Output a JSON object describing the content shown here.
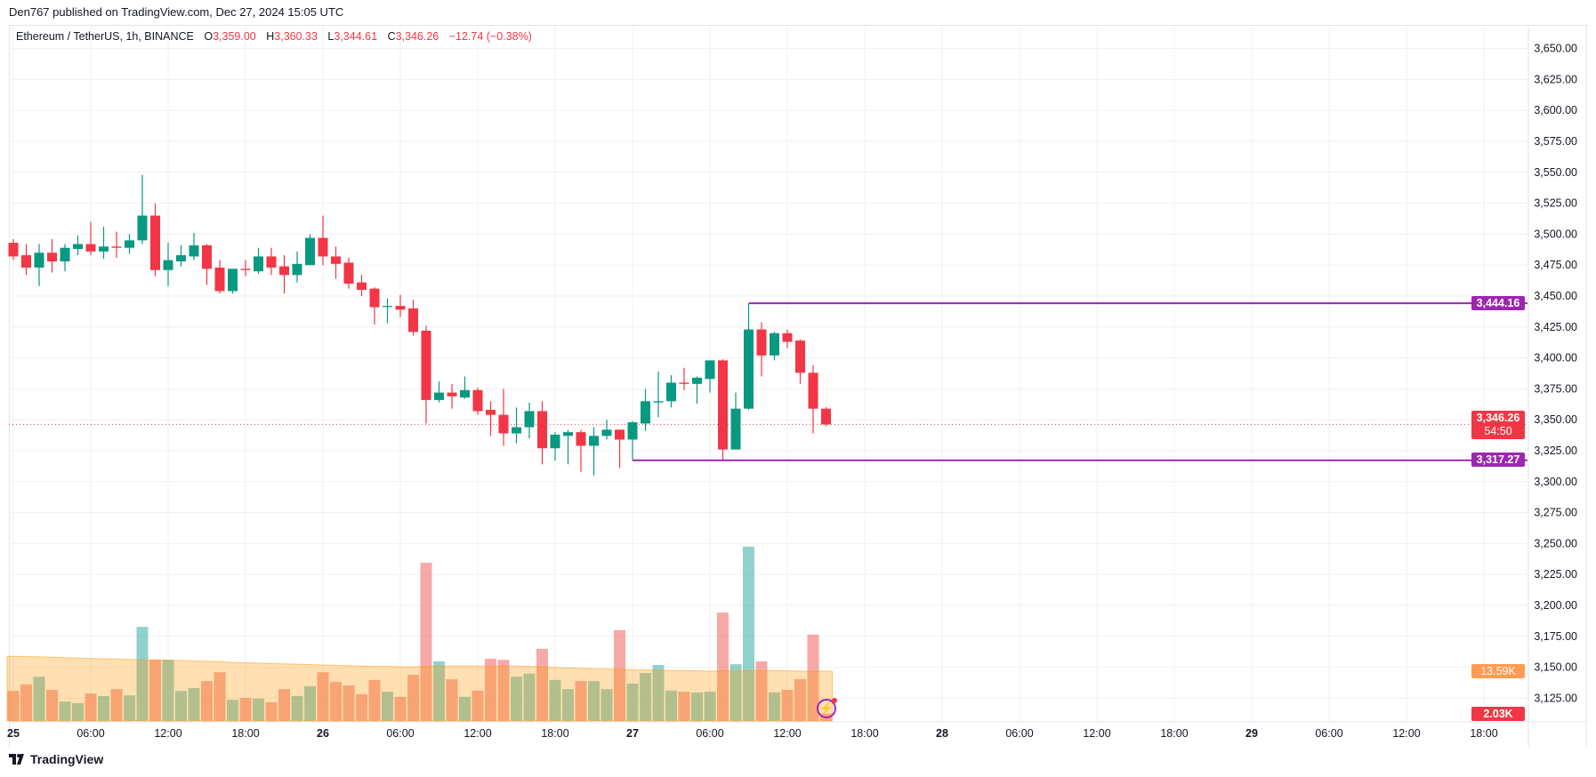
{
  "header": {
    "published": "Den767 published on TradingView.com, Dec 27, 2024 15:05 UTC"
  },
  "legend": {
    "symbol": "Ethereum / TetherUS, 1h, BINANCE",
    "o_label": "O",
    "o": "3,359.00",
    "h_label": "H",
    "h": "3,360.33",
    "l_label": "L",
    "l": "3,344.61",
    "c_label": "C",
    "c": "3,346.26",
    "change": "−12.74 (−0.38%)"
  },
  "price_boxes": {
    "resistance": "3,444.16",
    "current": "3,346.26",
    "countdown": "54:50",
    "support": "3,317.27"
  },
  "volume_boxes": {
    "ma": "13.59K",
    "last": "2.03K"
  },
  "footer": {
    "brand": "TradingView"
  },
  "colors": {
    "up": "#089981",
    "down": "#f23645",
    "level": "#9c27b0",
    "ma": "#ff9800"
  },
  "chart_data": {
    "type": "candlestick",
    "title": "Ethereum / TetherUS, 1h, BINANCE",
    "ylim": [
      3112.5,
      3662.5
    ],
    "price_ticks": [
      3650,
      3625,
      3600,
      3575,
      3550,
      3525,
      3500,
      3475,
      3450,
      3425,
      3400,
      3375,
      3350,
      3325,
      3300,
      3275,
      3250,
      3225,
      3200,
      3175,
      3150,
      3125
    ],
    "price_tick_labels": [
      "3,650.00",
      "3,625.00",
      "3,600.00",
      "3,575.00",
      "3,550.00",
      "3,525.00",
      "3,500.00",
      "3,475.00",
      "3,450.00",
      "3,425.00",
      "3,400.00",
      "3,375.00",
      "3,350.00",
      "3,325.00",
      "3,300.00",
      "3,275.00",
      "3,250.00",
      "3,225.00",
      "3,200.00",
      "3,175.00",
      "3,150.00",
      "3,125.00"
    ],
    "time_labels": [
      {
        "label": "25",
        "hour": 0,
        "day": true
      },
      {
        "label": "06:00",
        "hour": 6
      },
      {
        "label": "12:00",
        "hour": 12
      },
      {
        "label": "18:00",
        "hour": 18
      },
      {
        "label": "26",
        "hour": 24,
        "day": true
      },
      {
        "label": "06:00",
        "hour": 30
      },
      {
        "label": "12:00",
        "hour": 36
      },
      {
        "label": "18:00",
        "hour": 42
      },
      {
        "label": "27",
        "hour": 48,
        "day": true
      },
      {
        "label": "06:00",
        "hour": 54
      },
      {
        "label": "12:00",
        "hour": 60
      },
      {
        "label": "18:00",
        "hour": 66
      },
      {
        "label": "28",
        "hour": 72,
        "day": true
      },
      {
        "label": "06:00",
        "hour": 78
      },
      {
        "label": "12:00",
        "hour": 84
      },
      {
        "label": "18:00",
        "hour": 90
      },
      {
        "label": "29",
        "hour": 96,
        "day": true
      },
      {
        "label": "06:00",
        "hour": 102
      },
      {
        "label": "12:00",
        "hour": 108
      },
      {
        "label": "18:00",
        "hour": 114
      }
    ],
    "ohlc": [
      [
        3493,
        3496,
        3479,
        3482
      ],
      [
        3483,
        3492,
        3467,
        3473
      ],
      [
        3473,
        3492,
        3458,
        3485
      ],
      [
        3485,
        3496,
        3469,
        3478
      ],
      [
        3478,
        3492,
        3470,
        3489
      ],
      [
        3488,
        3499,
        3483,
        3492
      ],
      [
        3492,
        3510,
        3483,
        3486
      ],
      [
        3486,
        3506,
        3480,
        3490
      ],
      [
        3490,
        3502,
        3481,
        3489
      ],
      [
        3489,
        3500,
        3484,
        3495
      ],
      [
        3495,
        3548,
        3492,
        3515
      ],
      [
        3515,
        3525,
        3466,
        3471
      ],
      [
        3471,
        3493,
        3458,
        3479
      ],
      [
        3478,
        3491,
        3474,
        3483
      ],
      [
        3482,
        3501,
        3479,
        3491
      ],
      [
        3491,
        3492,
        3459,
        3472
      ],
      [
        3473,
        3479,
        3452,
        3454
      ],
      [
        3454,
        3472,
        3452,
        3472
      ],
      [
        3472,
        3479,
        3466,
        3471
      ],
      [
        3470,
        3489,
        3468,
        3482
      ],
      [
        3482,
        3489,
        3467,
        3473
      ],
      [
        3474,
        3483,
        3452,
        3467
      ],
      [
        3467,
        3486,
        3461,
        3476
      ],
      [
        3475,
        3500,
        3475,
        3497
      ],
      [
        3497,
        3515,
        3475,
        3482
      ],
      [
        3482,
        3490,
        3464,
        3476
      ],
      [
        3477,
        3481,
        3456,
        3460
      ],
      [
        3461,
        3467,
        3450,
        3455
      ],
      [
        3456,
        3457,
        3427,
        3441
      ],
      [
        3442,
        3448,
        3428,
        3442
      ],
      [
        3442,
        3451,
        3433,
        3439
      ],
      [
        3440,
        3447,
        3418,
        3421
      ],
      [
        3422,
        3426,
        3347,
        3366
      ],
      [
        3366,
        3381,
        3364,
        3372
      ],
      [
        3372,
        3379,
        3359,
        3369
      ],
      [
        3368,
        3385,
        3367,
        3374
      ],
      [
        3374,
        3376,
        3354,
        3357
      ],
      [
        3358,
        3365,
        3337,
        3354
      ],
      [
        3354,
        3375,
        3329,
        3339
      ],
      [
        3339,
        3360,
        3331,
        3344
      ],
      [
        3344,
        3364,
        3335,
        3357
      ],
      [
        3357,
        3365,
        3314,
        3327
      ],
      [
        3327,
        3340,
        3317,
        3338
      ],
      [
        3337,
        3342,
        3314,
        3340
      ],
      [
        3340,
        3342,
        3308,
        3329
      ],
      [
        3329,
        3344,
        3305,
        3337
      ],
      [
        3337,
        3350,
        3334,
        3342
      ],
      [
        3342,
        3342,
        3311,
        3334
      ],
      [
        3334,
        3349,
        3317.27,
        3348
      ],
      [
        3347,
        3375,
        3341,
        3365
      ],
      [
        3364,
        3389,
        3352,
        3365
      ],
      [
        3365,
        3386,
        3360,
        3380
      ],
      [
        3380,
        3392,
        3374,
        3379
      ],
      [
        3379,
        3385,
        3363,
        3384
      ],
      [
        3383,
        3398,
        3372,
        3398
      ],
      [
        3398,
        3399,
        3318,
        3326
      ],
      [
        3326,
        3372,
        3326,
        3359
      ],
      [
        3359,
        3444.16,
        3358,
        3423
      ],
      [
        3423,
        3429,
        3385,
        3402
      ],
      [
        3402,
        3421,
        3398,
        3420
      ],
      [
        3420,
        3423,
        3408,
        3413
      ],
      [
        3414,
        3415,
        3379,
        3388
      ],
      [
        3388,
        3394,
        3339,
        3359
      ],
      [
        3359,
        3360.33,
        3344.61,
        3346.26
      ]
    ],
    "volume_k": [
      8.2,
      10.0,
      12.1,
      8.5,
      5.3,
      4.9,
      7.5,
      6.8,
      8.7,
      7.0,
      25.7,
      16.7,
      16.7,
      8.2,
      9.0,
      10.9,
      13.3,
      5.8,
      6.3,
      6.1,
      5.1,
      8.7,
      6.8,
      9.5,
      13.3,
      10.7,
      9.7,
      7.3,
      11.2,
      8.0,
      6.6,
      12.6,
      43.2,
      16.3,
      11.4,
      6.6,
      8.3,
      17.0,
      16.7,
      12.1,
      12.9,
      19.7,
      11.2,
      8.7,
      10.9,
      10.9,
      8.7,
      24.8,
      10.2,
      13.1,
      15.3,
      8.3,
      8.0,
      7.8,
      8.0,
      29.6,
      15.5,
      47.6,
      16.3,
      7.8,
      8.5,
      11.4,
      23.6,
      2.03
    ],
    "volume_ma_k": [
      17.7,
      17.6,
      17.5,
      17.4,
      17.3,
      17.2,
      17.1,
      17.0,
      16.9,
      16.8,
      16.7,
      16.7,
      16.6,
      16.5,
      16.4,
      16.3,
      16.2,
      16.0,
      15.9,
      15.8,
      15.7,
      15.6,
      15.5,
      15.4,
      15.3,
      15.2,
      15.1,
      15.0,
      14.9,
      14.9,
      14.8,
      14.8,
      14.9,
      15.0,
      15.0,
      15.0,
      15.0,
      15.0,
      15.0,
      15.0,
      14.9,
      14.8,
      14.6,
      14.5,
      14.4,
      14.3,
      14.2,
      14.1,
      14.0,
      14.0,
      13.9,
      13.8,
      13.7,
      13.7,
      13.6,
      13.7,
      13.7,
      13.8,
      13.8,
      13.7,
      13.7,
      13.6,
      13.6,
      13.59
    ],
    "levels": [
      {
        "name": "resistance",
        "price": 3444.16,
        "from_hour": 57
      },
      {
        "name": "support",
        "price": 3317.27,
        "from_hour": 48
      }
    ],
    "current_price": 3346.26
  }
}
